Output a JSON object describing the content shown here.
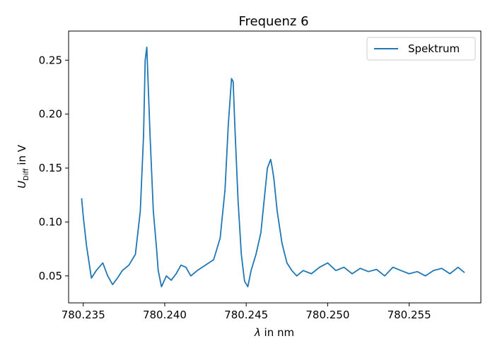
{
  "chart_data": {
    "type": "line",
    "title": "Frequenz 6",
    "xlabel_symbol": "λ",
    "xlabel_rest": " in nm",
    "ylabel_main": "U",
    "ylabel_sub": "Diff",
    "ylabel_rest": " in V",
    "xlim": [
      780.2341,
      780.2594
    ],
    "ylim": [
      0.025,
      0.277
    ],
    "xticks": [
      780.235,
      780.24,
      780.245,
      780.25,
      780.255
    ],
    "xtick_labels": [
      "780.235",
      "780.240",
      "780.245",
      "780.250",
      "780.255"
    ],
    "yticks": [
      0.05,
      0.1,
      0.15,
      0.2,
      0.25
    ],
    "ytick_labels": [
      "0.05",
      "0.10",
      "0.15",
      "0.20",
      "0.25"
    ],
    "grid": false,
    "legend_position": "top-right",
    "series": [
      {
        "name": "Spektrum",
        "color": "#1f77b4",
        "x": [
          780.2349,
          780.235,
          780.2352,
          780.2355,
          780.2358,
          780.2362,
          780.2365,
          780.2368,
          780.2371,
          780.2374,
          780.2378,
          780.2382,
          780.2385,
          780.2387,
          780.2388,
          780.2389,
          780.2391,
          780.2393,
          780.2395,
          780.2396,
          780.2398,
          780.2401,
          780.2404,
          780.2407,
          780.241,
          780.2413,
          780.2416,
          780.242,
          780.2425,
          780.243,
          780.2434,
          780.2437,
          780.2439,
          780.2441,
          780.2442,
          780.2443,
          780.2445,
          780.2447,
          780.2449,
          780.2451,
          780.2453,
          780.2456,
          780.2459,
          780.2461,
          780.2463,
          780.2465,
          780.2466,
          780.2467,
          780.2469,
          780.2472,
          780.2475,
          780.2478,
          780.2481,
          780.2485,
          780.249,
          780.2495,
          780.25,
          780.2505,
          780.251,
          780.2515,
          780.252,
          780.2525,
          780.253,
          780.2535,
          780.254,
          780.2545,
          780.255,
          780.2555,
          780.256,
          780.2565,
          780.257,
          780.2575,
          780.258,
          780.2584
        ],
        "y": [
          0.122,
          0.105,
          0.078,
          0.048,
          0.055,
          0.062,
          0.05,
          0.042,
          0.048,
          0.055,
          0.06,
          0.07,
          0.11,
          0.18,
          0.25,
          0.262,
          0.18,
          0.11,
          0.075,
          0.055,
          0.04,
          0.05,
          0.046,
          0.052,
          0.06,
          0.058,
          0.05,
          0.055,
          0.06,
          0.065,
          0.085,
          0.13,
          0.19,
          0.233,
          0.23,
          0.19,
          0.12,
          0.07,
          0.045,
          0.04,
          0.055,
          0.07,
          0.09,
          0.12,
          0.15,
          0.158,
          0.15,
          0.14,
          0.11,
          0.08,
          0.062,
          0.055,
          0.05,
          0.055,
          0.052,
          0.058,
          0.062,
          0.055,
          0.058,
          0.052,
          0.057,
          0.054,
          0.056,
          0.05,
          0.058,
          0.055,
          0.052,
          0.054,
          0.05,
          0.055,
          0.057,
          0.052,
          0.058,
          0.053
        ]
      }
    ]
  }
}
